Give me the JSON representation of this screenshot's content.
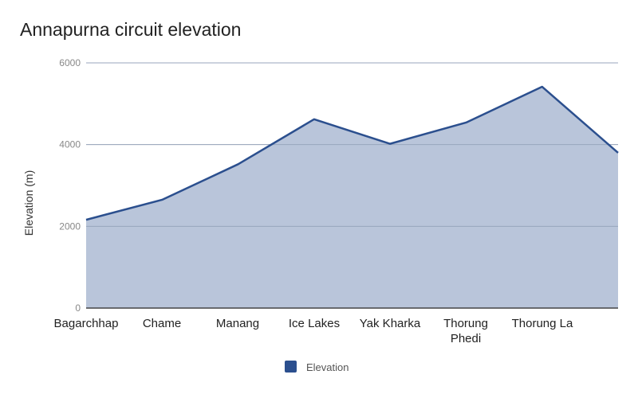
{
  "chart_data": {
    "type": "area",
    "title": "Annapurna circuit elevation",
    "xlabel": "",
    "ylabel": "Elevation (m)",
    "ylim": [
      0,
      6000
    ],
    "yticks": [
      "0",
      "2000",
      "4000",
      "6000"
    ],
    "grid": true,
    "legend_position": "bottom",
    "categories": [
      "Bagarchhap",
      "Chame",
      "Manang",
      "Ice Lakes",
      "Yak Kharka",
      "Thorung Phedi",
      "Thorung La",
      ""
    ],
    "series": [
      {
        "name": "Elevation",
        "color": "#2b4f8e",
        "fill": "#b9c5da",
        "values": [
          2160,
          2650,
          3520,
          4620,
          4020,
          4540,
          5416,
          3800
        ]
      }
    ]
  }
}
